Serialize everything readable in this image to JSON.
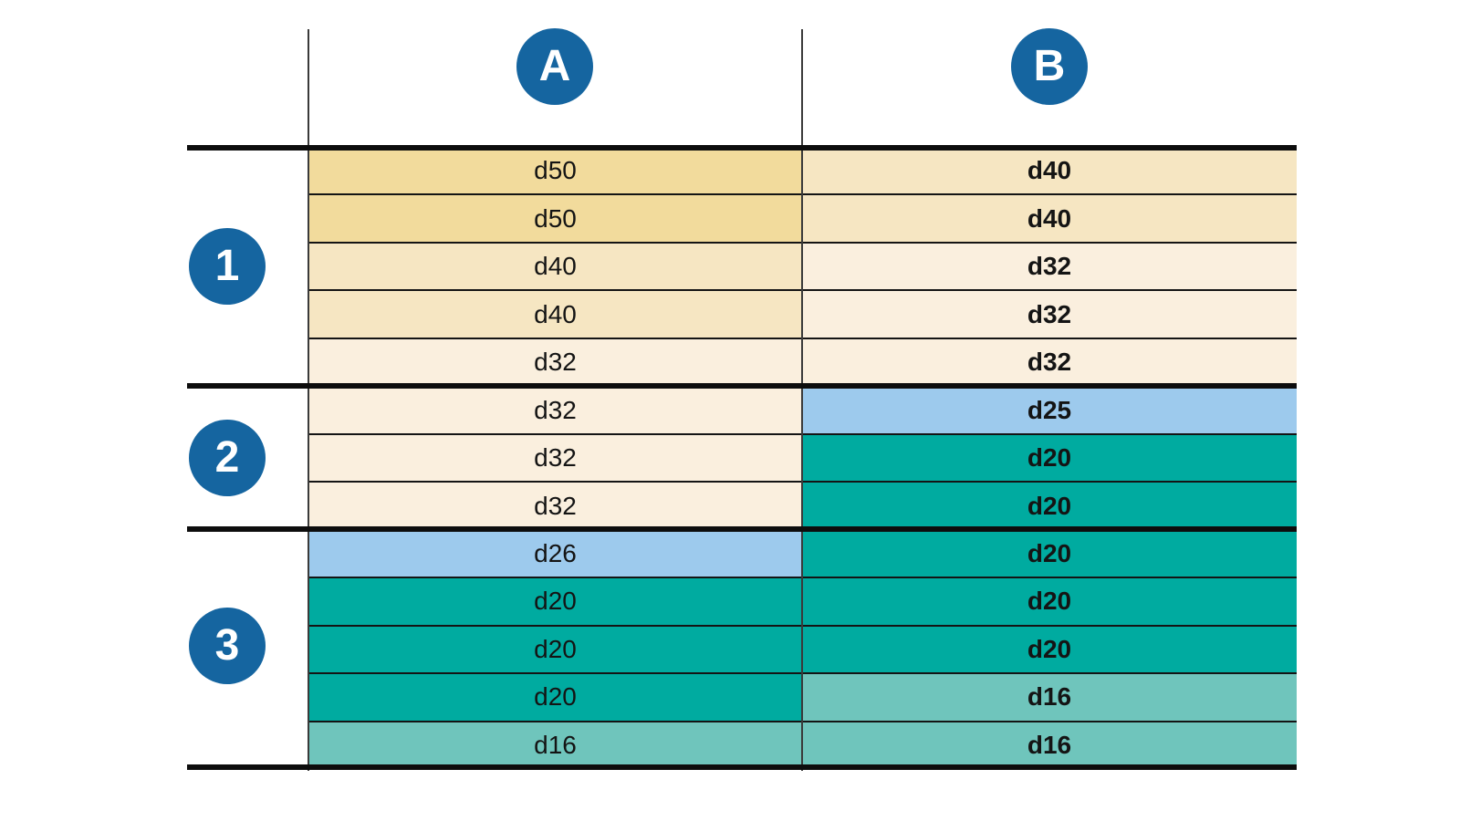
{
  "palette": {
    "badge_blue": "#1565a0",
    "tan_dark": "#f2db9c",
    "tan": "#f6e6c2",
    "cream": "#faefde",
    "light_blue": "#9dcaed",
    "teal": "#00aba0",
    "teal_light": "#6fc5bc",
    "rule_black": "#0d0d0d",
    "rule_gray": "#3a3a3a"
  },
  "columns": [
    {
      "label": "A"
    },
    {
      "label": "B"
    }
  ],
  "groups": [
    {
      "label": "1"
    },
    {
      "label": "2"
    },
    {
      "label": "3"
    }
  ],
  "table": {
    "rows": [
      {
        "group": "1",
        "a": {
          "text": "d50",
          "color": "tan_dark"
        },
        "b": {
          "text": "d40",
          "color": "tan"
        }
      },
      {
        "group": "1",
        "a": {
          "text": "d50",
          "color": "tan_dark"
        },
        "b": {
          "text": "d40",
          "color": "tan"
        }
      },
      {
        "group": "1",
        "a": {
          "text": "d40",
          "color": "tan"
        },
        "b": {
          "text": "d32",
          "color": "cream"
        }
      },
      {
        "group": "1",
        "a": {
          "text": "d40",
          "color": "tan"
        },
        "b": {
          "text": "d32",
          "color": "cream"
        }
      },
      {
        "group": "1",
        "a": {
          "text": "d32",
          "color": "cream"
        },
        "b": {
          "text": "d32",
          "color": "cream"
        }
      },
      {
        "group": "2",
        "a": {
          "text": "d32",
          "color": "cream"
        },
        "b": {
          "text": "d25",
          "color": "light_blue"
        }
      },
      {
        "group": "2",
        "a": {
          "text": "d32",
          "color": "cream"
        },
        "b": {
          "text": "d20",
          "color": "teal"
        }
      },
      {
        "group": "2",
        "a": {
          "text": "d32",
          "color": "cream"
        },
        "b": {
          "text": "d20",
          "color": "teal"
        }
      },
      {
        "group": "3",
        "a": {
          "text": "d26",
          "color": "light_blue"
        },
        "b": {
          "text": "d20",
          "color": "teal"
        }
      },
      {
        "group": "3",
        "a": {
          "text": "d20",
          "color": "teal"
        },
        "b": {
          "text": "d20",
          "color": "teal"
        }
      },
      {
        "group": "3",
        "a": {
          "text": "d20",
          "color": "teal"
        },
        "b": {
          "text": "d20",
          "color": "teal"
        }
      },
      {
        "group": "3",
        "a": {
          "text": "d20",
          "color": "teal"
        },
        "b": {
          "text": "d16",
          "color": "teal_light"
        }
      },
      {
        "group": "3",
        "a": {
          "text": "d16",
          "color": "teal_light"
        },
        "b": {
          "text": "d16",
          "color": "teal_light"
        }
      }
    ]
  }
}
